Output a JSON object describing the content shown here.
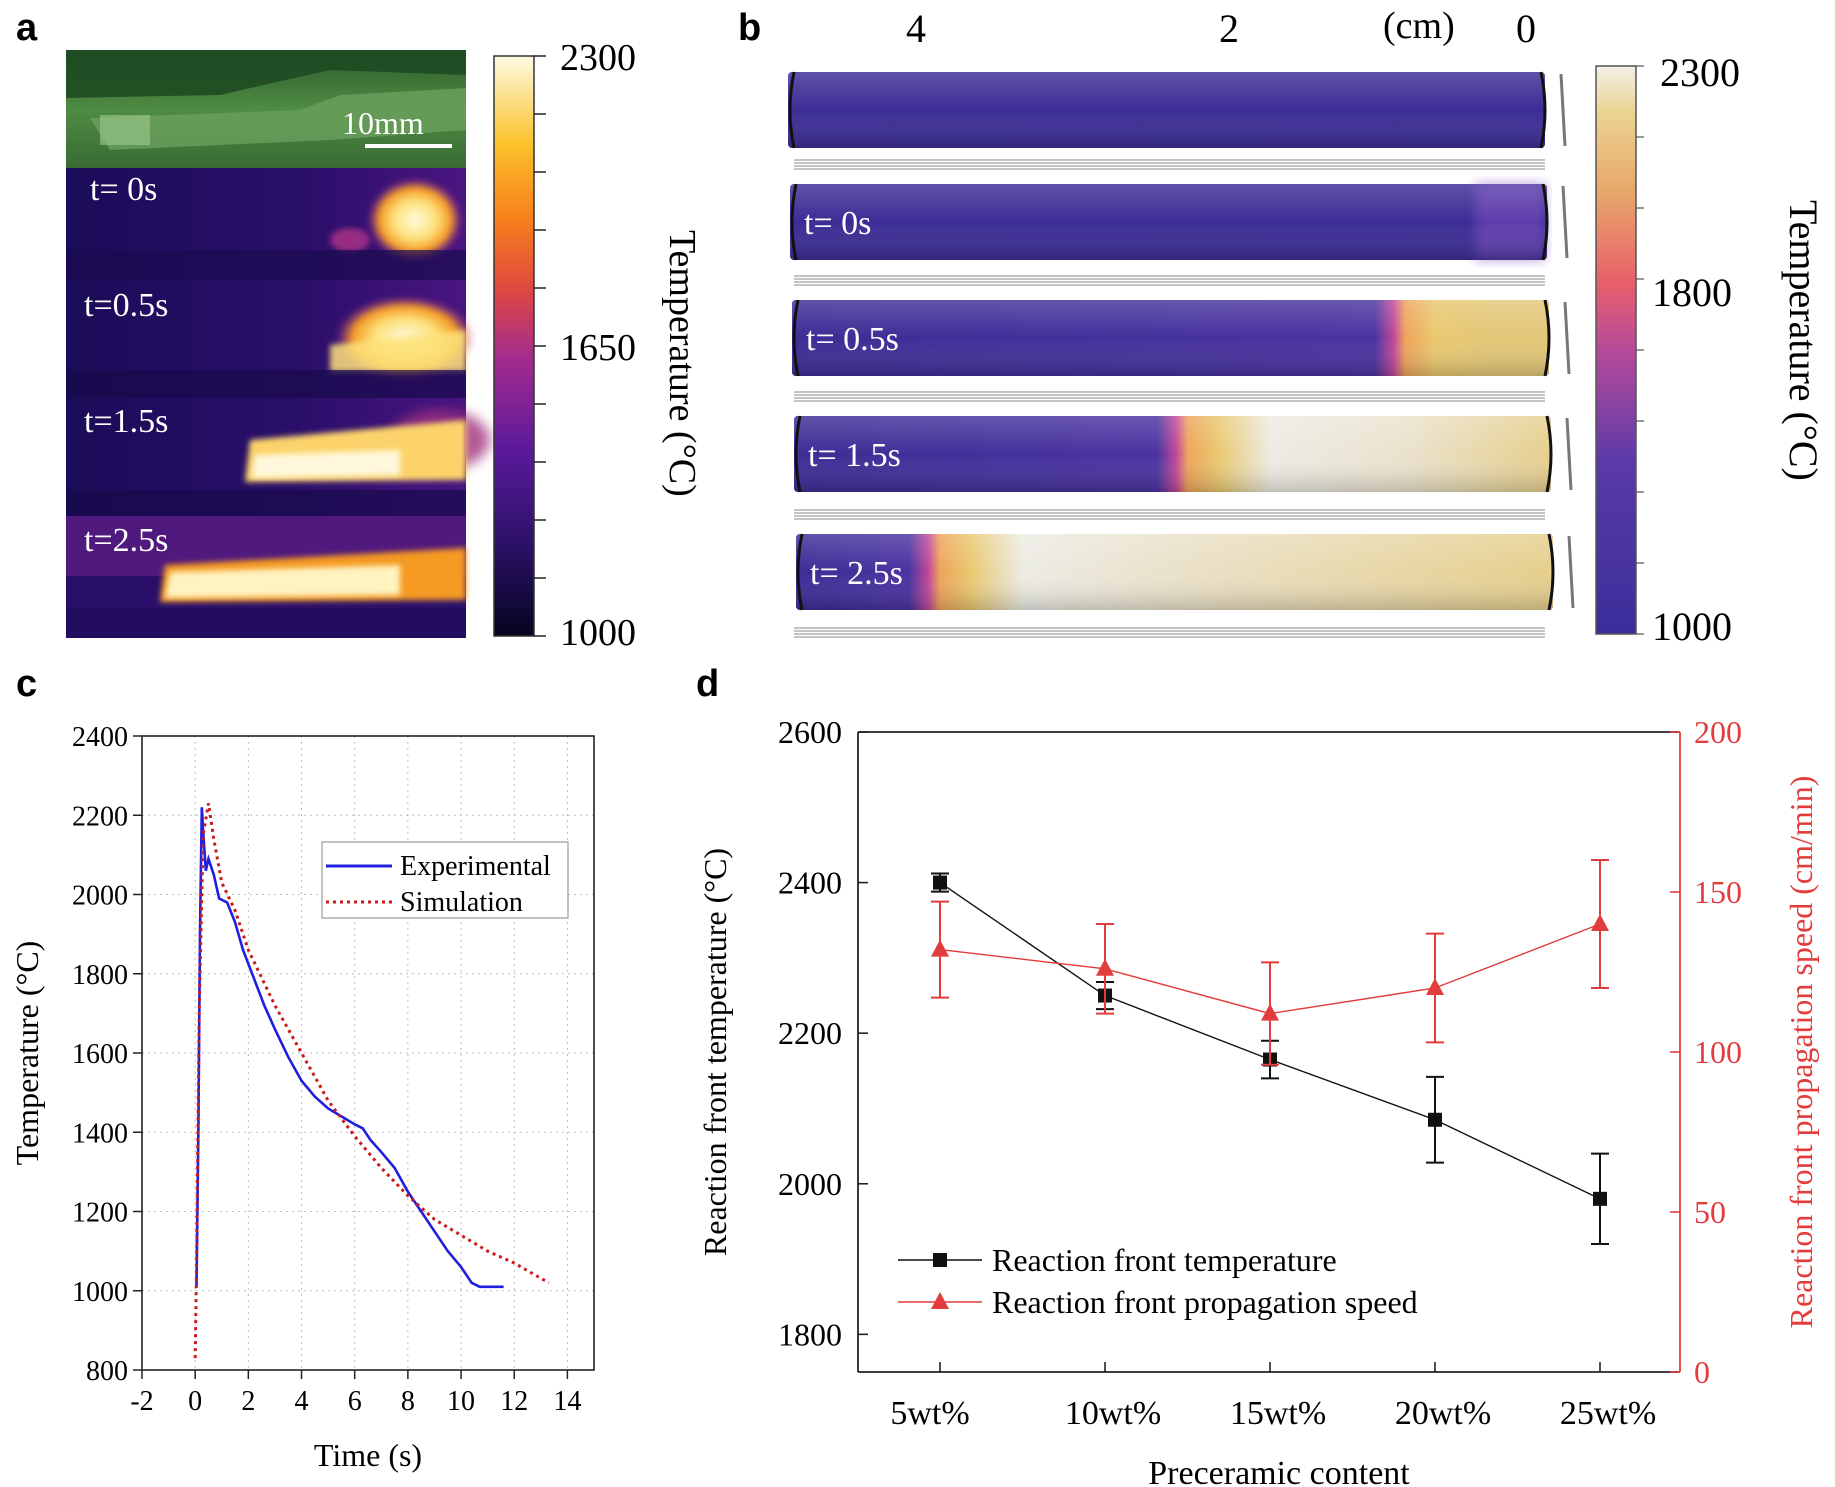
{
  "panels": {
    "a": {
      "letter": "a",
      "scale_bar": "10mm",
      "frames": [
        "t= 0s",
        "t=0.5s",
        "t=1.5s",
        "t=2.5s"
      ],
      "colorbar": {
        "max": "2300",
        "mid": "1650",
        "min": "1000",
        "label": "Temperature (°C)"
      }
    },
    "b": {
      "letter": "b",
      "axis_ticks": [
        "4",
        "2",
        "0"
      ],
      "axis_unit": "(cm)",
      "frames": [
        "t= 0s",
        "t= 0.5s",
        "t= 1.5s",
        "t= 2.5s"
      ],
      "hot_fraction": [
        0.0,
        0.2,
        0.49,
        0.82
      ],
      "colorbar": {
        "max": "2300",
        "mid": "1800",
        "min": "1000",
        "label": "Temperature (°C)"
      }
    },
    "c": {
      "letter": "c"
    },
    "d": {
      "letter": "d"
    }
  },
  "chart_data": [
    {
      "panel": "c",
      "type": "line",
      "xlabel": "Time (s)",
      "ylabel": "Temperature (°C)",
      "xlim": [
        -2,
        15
      ],
      "ylim": [
        800,
        2400
      ],
      "xticks": [
        "-2",
        "0",
        "2",
        "4",
        "6",
        "8",
        "10",
        "12",
        "14"
      ],
      "yticks": [
        "800",
        "1000",
        "1200",
        "1400",
        "1600",
        "1800",
        "2000",
        "2200",
        "2400"
      ],
      "grid": true,
      "legend_position": "top-right",
      "series": [
        {
          "name": "Experimental",
          "color": "#1f1fe0",
          "style": "solid",
          "x": [
            0.05,
            0.12,
            0.18,
            0.25,
            0.3,
            0.4,
            0.5,
            0.7,
            0.9,
            1.2,
            1.5,
            1.8,
            2.2,
            2.6,
            3.0,
            3.5,
            4.0,
            4.5,
            5.0,
            5.5,
            6.0,
            6.3,
            6.6,
            7.0,
            7.5,
            8.0,
            8.5,
            9.0,
            9.5,
            10.0,
            10.4,
            10.7,
            11.0,
            11.3,
            11.6
          ],
          "y": [
            1010,
            1400,
            1900,
            2220,
            2160,
            2060,
            2090,
            2050,
            1990,
            1980,
            1930,
            1860,
            1790,
            1720,
            1660,
            1590,
            1530,
            1490,
            1460,
            1440,
            1420,
            1410,
            1380,
            1350,
            1310,
            1250,
            1200,
            1150,
            1100,
            1060,
            1020,
            1010,
            1010,
            1010,
            1010
          ]
        },
        {
          "name": "Simulation",
          "color": "#cc1a1a",
          "style": "dotted",
          "x": [
            0.0,
            0.05,
            0.15,
            0.3,
            0.5,
            0.7,
            1.0,
            1.5,
            2.0,
            3.0,
            4.0,
            5.0,
            6.0,
            7.0,
            8.0,
            9.0,
            10.0,
            11.0,
            12.0,
            13.3
          ],
          "y": [
            830,
            1050,
            1700,
            2150,
            2230,
            2140,
            2030,
            1960,
            1860,
            1720,
            1600,
            1480,
            1390,
            1310,
            1240,
            1180,
            1140,
            1100,
            1070,
            1020
          ]
        }
      ]
    },
    {
      "panel": "d",
      "type": "line",
      "xlabel": "Preceramic content",
      "ylabel": "Reaction front temperature (°C)",
      "ylabel_right": "Reaction front propagation speed (cm/min)",
      "categories": [
        "5wt%",
        "10wt%",
        "15wt%",
        "20wt%",
        "25wt%"
      ],
      "ylim": [
        1750,
        2600
      ],
      "yticks": [
        "1800",
        "2000",
        "2200",
        "2400",
        "2600"
      ],
      "ylim_right": [
        0,
        200
      ],
      "yticks_right": [
        "0",
        "50",
        "100",
        "150",
        "200"
      ],
      "legend_position": "bottom-left",
      "series": [
        {
          "name": "Reaction front temperature",
          "axis": "left",
          "color": "#111111",
          "marker": "square",
          "values": [
            2400,
            2250,
            2165,
            2085,
            1980
          ],
          "errors": [
            12,
            18,
            25,
            57,
            60
          ]
        },
        {
          "name": "Reaction front propagation speed",
          "axis": "right",
          "color": "#e23c3c",
          "marker": "triangle",
          "values": [
            132,
            126,
            112,
            120,
            140
          ],
          "errors": [
            15,
            14,
            16,
            17,
            20
          ]
        }
      ]
    }
  ]
}
